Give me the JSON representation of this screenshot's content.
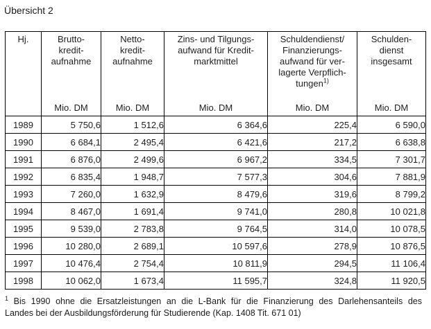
{
  "page": {
    "title": "Übersicht 2"
  },
  "table": {
    "columns": [
      {
        "id": "hj",
        "header_lines": [
          "Hj."
        ],
        "unit": ""
      },
      {
        "id": "bruttokreditaufnahme",
        "header_lines": [
          "Brutto-",
          "kredit-",
          "aufnahme"
        ],
        "unit": "Mio. DM"
      },
      {
        "id": "nettokreditaufnahme",
        "header_lines": [
          "Netto-",
          "kredit-",
          "aufnahme"
        ],
        "unit": "Mio. DM"
      },
      {
        "id": "zins-tilgungsaufwand",
        "header_lines": [
          "Zins- und Tilgungs-",
          "aufwand für Kredit-",
          "marktmittel"
        ],
        "unit": "Mio. DM"
      },
      {
        "id": "schuldendienst-verlagerte",
        "header_lines": [
          "Schuldendienst/",
          "Finanzierungs-",
          "aufwand für ver-",
          "lagerte Verpflich-",
          "tungen"
        ],
        "footnote_marker": "1)",
        "unit": "Mio. DM"
      },
      {
        "id": "schuldendienst-insgesamt",
        "header_lines": [
          "Schulden-",
          "dienst",
          "insgesamt"
        ],
        "unit": "Mio. DM"
      }
    ],
    "rows": [
      [
        "1989",
        "5 750,6",
        "1 512,6",
        "6 364,6",
        "225,4",
        "6 590,0"
      ],
      [
        "1990",
        "6 684,1",
        "2 495,4",
        "6 421,6",
        "217,2",
        "6 638,8"
      ],
      [
        "1991",
        "6 876,0",
        "2 499,6",
        "6 967,2",
        "334,5",
        "7 301,7"
      ],
      [
        "1992",
        "6 835,4",
        "1 948,7",
        "7 577,3",
        "304,6",
        "7 881,9"
      ],
      [
        "1993",
        "7 260,0",
        "1 632,9",
        "8 479,6",
        "319,6",
        "8 799,2"
      ],
      [
        "1994",
        "8 467,0",
        "1 691,4",
        "9 741,0",
        "280,8",
        "10 021,8"
      ],
      [
        "1995",
        "9 539,0",
        "2 783,8",
        "9 764,5",
        "314,0",
        "10 078,5"
      ],
      [
        "1996",
        "10 280,0",
        "2 689,1",
        "10 597,6",
        "278,9",
        "10 876,5"
      ],
      [
        "1997",
        "10 476,4",
        "2 754,4",
        "10 811,9",
        "294,5",
        "11 106,4"
      ],
      [
        "1998",
        "10 062,0",
        "1 673,4",
        "11 595,7",
        "324,8",
        "11 920,5"
      ]
    ]
  },
  "footnote": {
    "marker": "1",
    "lines": [
      "Bis 1990 ohne die Ersatzleistungen an die L-Bank für die Finanzierung des Darlehensanteils des",
      "Landes bei der Ausbildungsförderung für Studierende (Kap. 1408 Tit. 671 01)"
    ]
  },
  "colors": {
    "text": "#1e1e1e",
    "border": "#000000",
    "background": "#ffffff"
  }
}
